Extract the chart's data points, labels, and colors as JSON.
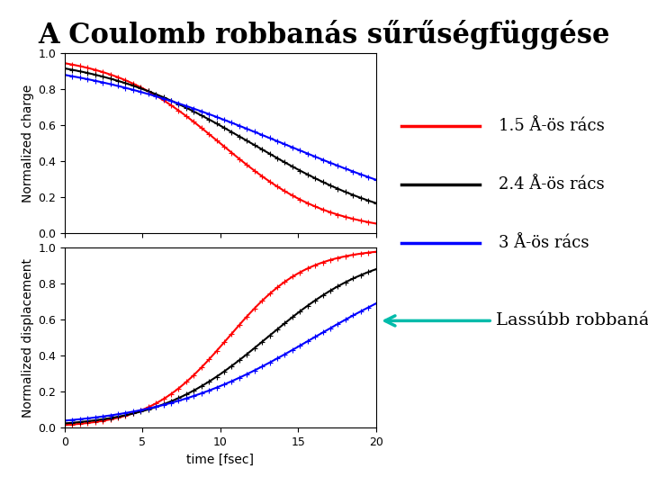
{
  "title": "A Coulomb robbanás sűrűségfüggése",
  "title_fontsize": 22,
  "title_fontweight": "bold",
  "xlabel": "time [fsec]",
  "ylabel_top": "Normalized charge",
  "ylabel_bottom": "Normalized displacement",
  "xlim": [
    0,
    20
  ],
  "ylim": [
    0,
    1
  ],
  "colors": [
    "red",
    "black",
    "blue"
  ],
  "legend_labels": [
    "1.5 Å-ös rács",
    "2.4 Å-ös rács",
    "3 Å-ös rács"
  ],
  "annotation_text": "Lassúbb robbanás",
  "annotation_color": "#00BBAA",
  "background_color": "#ffffff",
  "tick_label_fontsize": 9,
  "axis_label_fontsize": 10,
  "legend_fontsize": 13,
  "sigma_charge": [
    3.5,
    5.0,
    7.0
  ],
  "mu_charge": [
    10.0,
    12.0,
    14.0
  ],
  "sigma_disp": [
    2.5,
    3.5,
    5.0
  ],
  "mu_disp": [
    10.5,
    13.0,
    16.0
  ]
}
